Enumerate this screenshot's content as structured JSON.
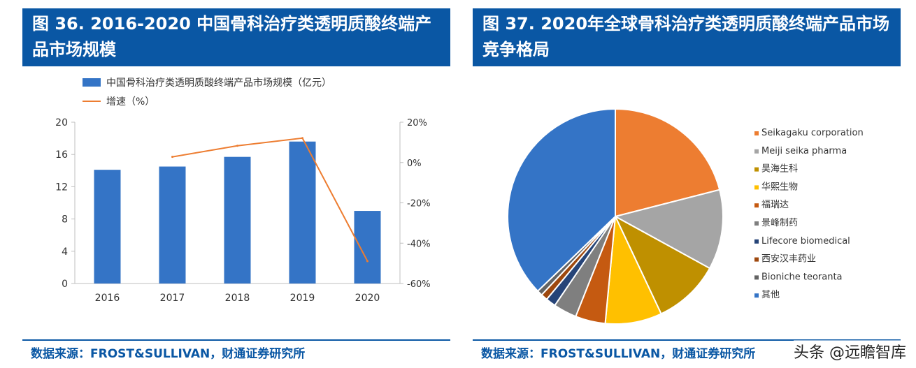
{
  "left": {
    "title": "图 36. 2016-2020 中国骨科治疗类透明质酸终端产品市场规模",
    "source": "数据来源：FROST&SULLIVAN，财通证券研究所"
  },
  "right": {
    "title": "图 37. 2020年全球骨科治疗类透明质酸终端产品市场竞争格局",
    "source": "数据来源：FROST&SULLIVAN，财通证券研究所"
  },
  "watermark": "头条 @远瞻智库",
  "chart_data": [
    {
      "type": "bar",
      "categories": [
        "2016",
        "2017",
        "2018",
        "2019",
        "2020"
      ],
      "series": [
        {
          "name": "中国骨科治疗类透明质酸终端产品市场规模（亿元）",
          "type": "bar",
          "axis": "left",
          "values": [
            14.1,
            14.5,
            15.7,
            17.6,
            9.0
          ],
          "color": "#3474c6"
        },
        {
          "name": "增速（%）",
          "type": "line",
          "axis": "right",
          "values": [
            null,
            2.8,
            8.3,
            12.1,
            -48.9
          ],
          "color": "#ed7d31"
        }
      ],
      "ylim": [
        0,
        20
      ],
      "yticks": [
        "0",
        "4",
        "8",
        "12",
        "16",
        "20"
      ],
      "y2lim": [
        -60,
        20
      ],
      "y2ticks": [
        "-60%",
        "-40%",
        "-20%",
        "0%",
        "20%"
      ],
      "legend_position": "top-left",
      "grid": false
    },
    {
      "type": "pie",
      "labels": [
        "Seikagaku corporation",
        "Meiji seika pharma",
        "昊海生科",
        "华熙生物",
        "福瑞达",
        "景峰制药",
        "Lifecore biomedical",
        "西安汉丰药业",
        "Bioniche teoranta",
        "其他"
      ],
      "values": [
        21.0,
        12.0,
        10.0,
        8.5,
        4.5,
        3.5,
        1.5,
        1.0,
        0.8,
        37.2
      ],
      "colors": [
        "#ed7d31",
        "#a5a5a5",
        "#bf9000",
        "#ffc000",
        "#c55a11",
        "#7f7f7f",
        "#264478",
        "#9e480e",
        "#636363",
        "#3474c6"
      ],
      "legend_position": "right"
    }
  ]
}
